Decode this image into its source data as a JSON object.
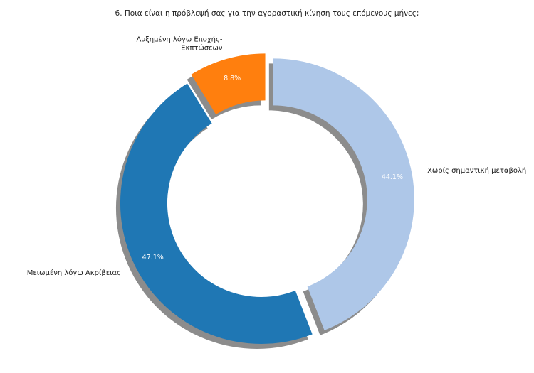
{
  "chart_data": {
    "type": "pie",
    "style": "donut",
    "title": "6. Ποια είναι η πρόβλεψή σας για την αγοραστική κίνηση τους επόμενους μήνες;",
    "slices": [
      {
        "label": "Χωρίς σημαντική μεταβολή",
        "value": 44.1,
        "pct_label": "44.1%",
        "color": "#aec7e8"
      },
      {
        "label": "Μειωμένη λόγω Ακρίβειας",
        "value": 47.1,
        "pct_label": "47.1%",
        "color": "#1f77b4"
      },
      {
        "label": "Αυξημένη λόγω Εποχής-Εκπτώσεων",
        "label_lines": [
          "Αυξημένη λόγω Εποχής-",
          "Εκπτώσεων"
        ],
        "value": 8.8,
        "pct_label": "8.8%",
        "color": "#ff7f0e"
      }
    ],
    "shadow": true,
    "exploded": true
  }
}
